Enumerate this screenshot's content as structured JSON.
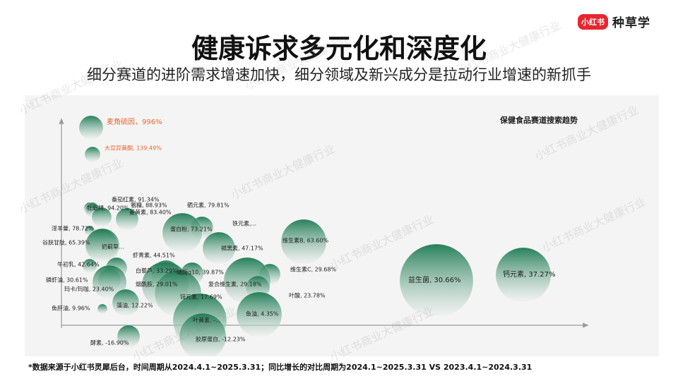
{
  "brand": {
    "badge": "小红书",
    "name": "种草学"
  },
  "title": "健康诉求多元化和深度化",
  "subtitle": "细分赛道的进阶需求增速加快，细分领域及新兴成分是拉动行业增速的新抓手",
  "footnote": "*数据来源于小红书灵犀后台，时间周期从2024.4.1~2025.3.31；同比增长的对比周期为2024.1~2025.3.31 VS 2023.4.1~2024.3.31",
  "watermark": "小红书商业大健康行业",
  "colors": {
    "bubble_dark": "#1b7a52",
    "bubble_light": "#f2f2f2",
    "highlight_label": "#e8662a",
    "label": "#222222",
    "axis": "#9a9a9a"
  },
  "chart_data": {
    "type": "scatter",
    "title": "保健食品赛道搜索趋势",
    "xlabel": "",
    "ylabel": "",
    "series": [
      {
        "values": [
          {
            "label": "麦角硫因，996%",
            "highlight": true
          },
          {
            "label": "大豆异黄酮, 139.49%",
            "highlight": true
          },
          {
            "label": "牡蛎精, 94.20%"
          },
          {
            "label": "番茄红素, 91.34%"
          },
          {
            "label": "氨糖, 88.93%"
          },
          {
            "label": "硒元素, 79.81%"
          },
          {
            "label": "姜黄素, 83.40%"
          },
          {
            "label": "淫羊藿, 78.72%"
          },
          {
            "label": "铁元素,..."
          },
          {
            "label": "蛋白粉, 73.21%"
          },
          {
            "label": "谷胱甘肽, 65.39%"
          },
          {
            "label": "维生素B, 63.60%"
          },
          {
            "label": "奶蓟草..."
          },
          {
            "label": "褪黑素, 47.17%"
          },
          {
            "label": "虾青素, 44.51%"
          },
          {
            "label": "牛初乳, 42.64%"
          },
          {
            "label": "维生素C, 29.68%"
          },
          {
            "label": "白藜芦, 33.29%"
          },
          {
            "label": "辅酶q10, 39.87%"
          },
          {
            "label": "磷虾油, 30.61%"
          },
          {
            "label": "复合维生素, 29.18%"
          },
          {
            "label": "玛卡/玛咖, 23.40%"
          },
          {
            "label": "烟酰胺, 29.01%"
          },
          {
            "label": "叶酸, 23.78%"
          },
          {
            "label": "锌元素, 17.69%"
          },
          {
            "label": "鱼肝油, 9.96%"
          },
          {
            "label": "藻油, 12.22%"
          },
          {
            "label": "鱼油, 4.35%"
          },
          {
            "label": "叶黄素, -..."
          },
          {
            "label": "酵素, -16.90%"
          },
          {
            "label": "胶原蛋白, -12.23%"
          },
          {
            "label": "益生菌, 30.66%"
          },
          {
            "label": "钙元素, 37.27%"
          }
        ]
      }
    ]
  }
}
